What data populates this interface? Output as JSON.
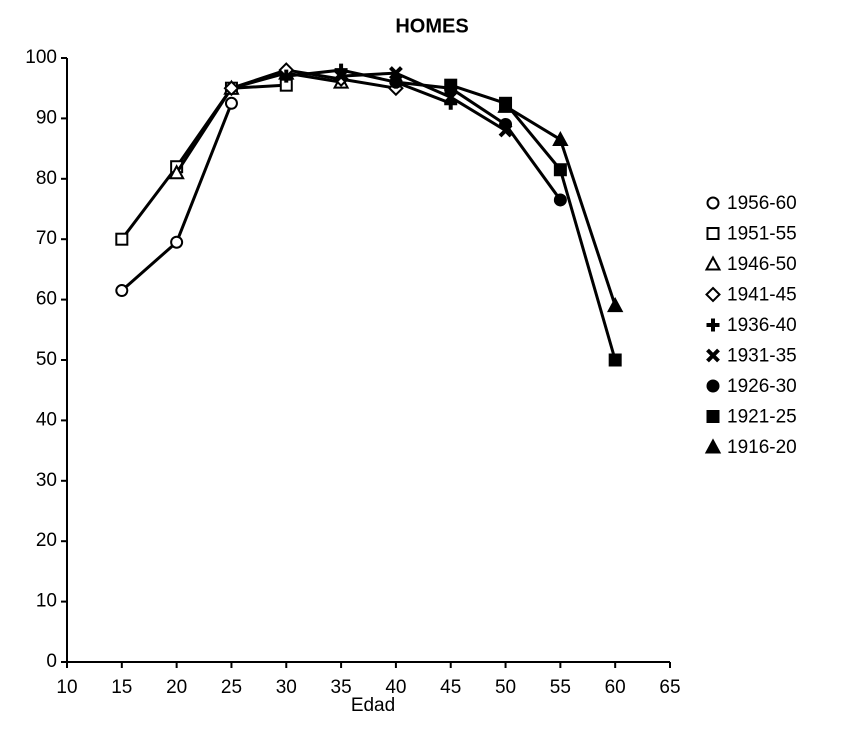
{
  "chart_data": {
    "type": "line",
    "title": "HOMES",
    "x_label": "Edad",
    "xlim": [
      10,
      65
    ],
    "xticks": [
      10,
      15,
      20,
      25,
      30,
      35,
      40,
      45,
      50,
      55,
      60,
      65
    ],
    "ylim": [
      0,
      100
    ],
    "yticks": [
      0,
      10,
      20,
      30,
      40,
      50,
      60,
      70,
      80,
      90,
      100
    ],
    "legend": "right",
    "series": [
      {
        "name": "1956-60",
        "color": "#000000",
        "marker": "circle-open",
        "x": [
          15,
          20,
          25
        ],
        "values": [
          61.5,
          69.5,
          92.5
        ]
      },
      {
        "name": "1951-55",
        "color": "#000000",
        "marker": "square-open",
        "x": [
          15,
          20,
          25,
          30
        ],
        "values": [
          70,
          82,
          95,
          95.5
        ]
      },
      {
        "name": "1946-50",
        "color": "#000000",
        "marker": "triangle-open",
        "x": [
          20,
          25,
          30,
          35
        ],
        "values": [
          81,
          95,
          97.5,
          96
        ]
      },
      {
        "name": "1941-45",
        "color": "#000000",
        "marker": "diamond-open",
        "x": [
          25,
          30,
          35,
          40
        ],
        "values": [
          95,
          98,
          96.5,
          95
        ]
      },
      {
        "name": "1936-40",
        "color": "#000000",
        "marker": "plus",
        "x": [
          30,
          35,
          40,
          45
        ],
        "values": [
          97,
          98,
          96,
          92.5
        ]
      },
      {
        "name": "1931-35",
        "color": "#000000",
        "marker": "cross",
        "x": [
          35,
          40,
          45,
          50
        ],
        "values": [
          97,
          97.5,
          93.5,
          88
        ]
      },
      {
        "name": "1926-30",
        "color": "#000000",
        "marker": "circle",
        "x": [
          40,
          45,
          50,
          55
        ],
        "values": [
          96,
          95,
          89,
          76.5
        ]
      },
      {
        "name": "1921-25",
        "color": "#000000",
        "marker": "square",
        "x": [
          45,
          50,
          55,
          60
        ],
        "values": [
          95.5,
          92.5,
          81.5,
          50
        ]
      },
      {
        "name": "1916-20",
        "color": "#000000",
        "marker": "triangle",
        "x": [
          50,
          55,
          60
        ],
        "values": [
          92,
          86.5,
          59
        ]
      }
    ]
  }
}
